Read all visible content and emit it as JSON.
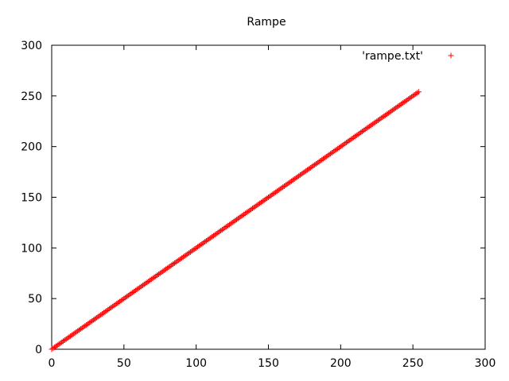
{
  "chart_data": {
    "type": "scatter",
    "title": "Rampe",
    "xlabel": "",
    "ylabel": "",
    "xlim": [
      0,
      300
    ],
    "ylim": [
      0,
      300
    ],
    "x_ticks": [
      0,
      50,
      100,
      150,
      200,
      250,
      300
    ],
    "y_ticks": [
      0,
      50,
      100,
      150,
      200,
      250,
      300
    ],
    "grid": false,
    "legend_position": "top-right",
    "series": [
      {
        "name": "'rampe.txt'",
        "marker": "+",
        "color": "#ff0000",
        "x_start": 0,
        "x_end": 254,
        "x_step": 1,
        "relation": "y = x"
      }
    ]
  }
}
